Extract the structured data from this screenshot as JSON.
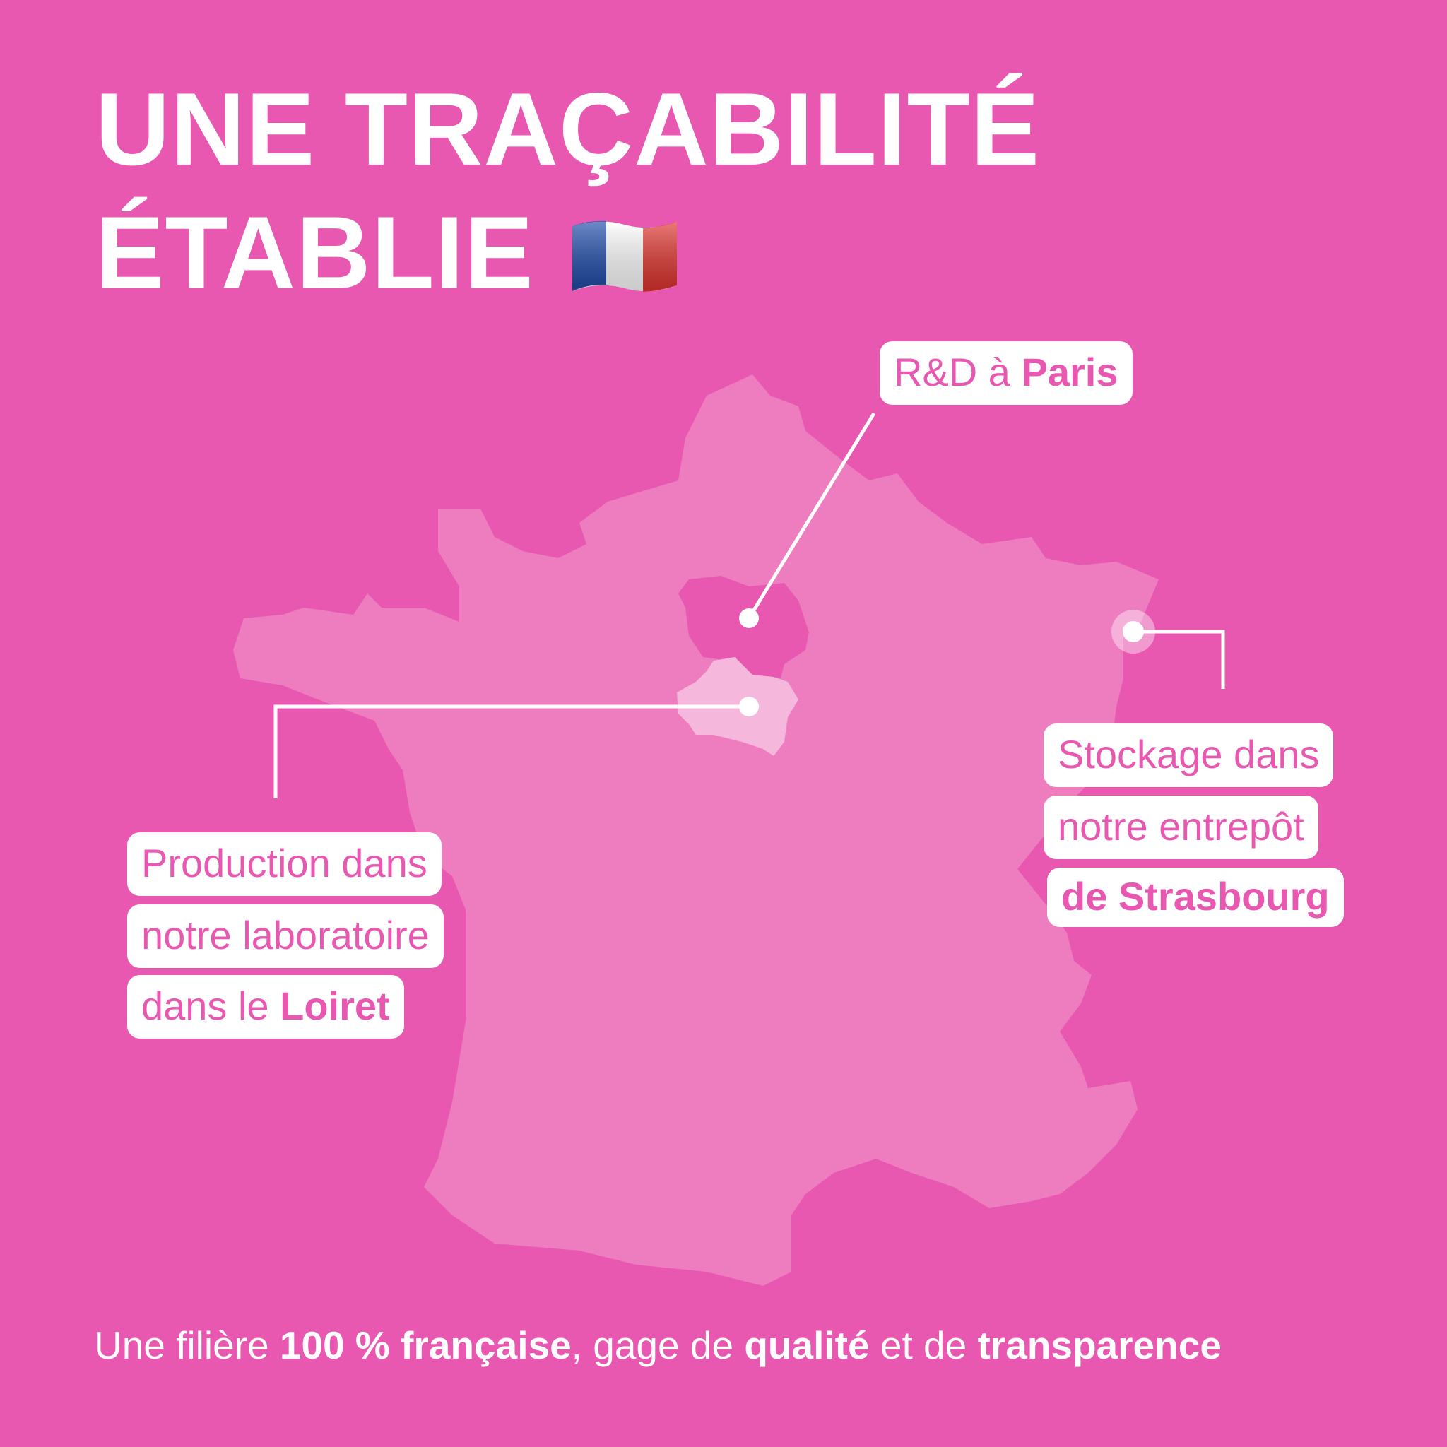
{
  "title": {
    "line1": "UNE TRAÇABILITÉ",
    "line2": "ÉTABLIE",
    "flag_icon": "france-flag-icon"
  },
  "colors": {
    "background": "#E858B0",
    "map": "#EE7DC0",
    "paris_region": "#E858B0",
    "loiret_region": "#F5B8DC",
    "label_text": "#E858B0"
  },
  "labels": {
    "paris": {
      "normal": "R&D à ",
      "bold": "Paris"
    },
    "production": {
      "line1": "Production dans",
      "line2": "notre laboratoire",
      "line3_normal": "dans le ",
      "line3_bold": "Loiret"
    },
    "storage": {
      "line1": "Stockage dans",
      "line2": "notre entrepôt",
      "line3_bold": "de Strasbourg"
    }
  },
  "footer": {
    "p1": "Une filière ",
    "b1": "100 % française",
    "p2": ", gage de ",
    "b2": "qualité",
    "p3": " et de ",
    "b3": "transparence"
  }
}
